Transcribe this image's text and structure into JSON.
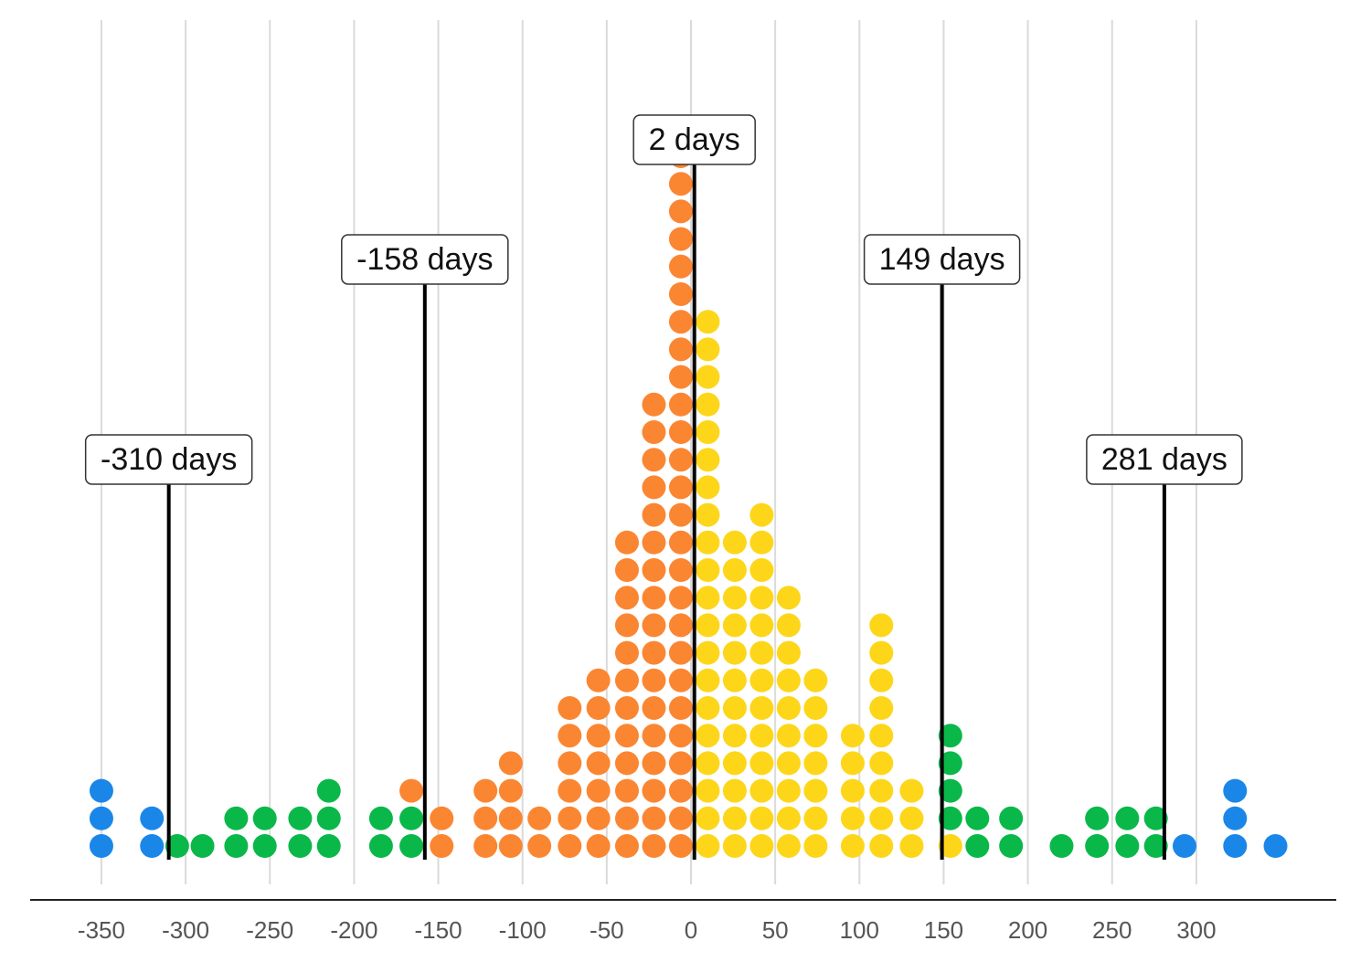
{
  "chart_data": {
    "type": "scatter",
    "title": "",
    "xlabel": "",
    "ylabel": "",
    "xlim": [
      -392,
      382
    ],
    "grid": true,
    "x_ticks": [
      -350,
      -300,
      -250,
      -200,
      -150,
      -100,
      -50,
      0,
      50,
      100,
      150,
      200,
      250,
      300
    ],
    "x_tick_labels": [
      "-350",
      "-300",
      "-250",
      "-200",
      "-150",
      "-100",
      "-50",
      "0",
      "50",
      "100",
      "150",
      "200",
      "250",
      "300"
    ],
    "colors": {
      "blue": "#1a87e8",
      "green": "#0ab84a",
      "orange": "#fb8632",
      "yellow": "#fdd619"
    },
    "dot_columns": [
      {
        "x": -350,
        "count": 3,
        "color": "blue"
      },
      {
        "x": -320,
        "count": 2,
        "color": "blue"
      },
      {
        "x": -305,
        "count": 1,
        "color": "green"
      },
      {
        "x": -290,
        "count": 1,
        "color": "green"
      },
      {
        "x": -270,
        "count": 2,
        "color": "green"
      },
      {
        "x": -253,
        "count": 2,
        "color": "green"
      },
      {
        "x": -232,
        "count": 2,
        "color": "green"
      },
      {
        "x": -215,
        "count": 3,
        "color": "green"
      },
      {
        "x": -184,
        "count": 2,
        "color": "green"
      },
      {
        "x": -166,
        "count": 2,
        "color": "green",
        "stack": [
          {
            "count": 1,
            "color": "orange"
          }
        ]
      },
      {
        "x": -148,
        "count": 2,
        "color": "orange"
      },
      {
        "x": -122,
        "count": 3,
        "color": "orange"
      },
      {
        "x": -107,
        "count": 4,
        "color": "orange"
      },
      {
        "x": -90,
        "count": 2,
        "color": "orange"
      },
      {
        "x": -72,
        "count": 6,
        "color": "orange"
      },
      {
        "x": -55,
        "count": 7,
        "color": "orange"
      },
      {
        "x": -38,
        "count": 12,
        "color": "orange"
      },
      {
        "x": -22,
        "count": 17,
        "color": "orange"
      },
      {
        "x": -6,
        "count": 26,
        "color": "orange"
      },
      {
        "x": 10,
        "count": 20,
        "color": "yellow"
      },
      {
        "x": 26,
        "count": 12,
        "color": "yellow"
      },
      {
        "x": 42,
        "count": 13,
        "color": "yellow"
      },
      {
        "x": 58,
        "count": 10,
        "color": "yellow"
      },
      {
        "x": 74,
        "count": 7,
        "color": "yellow"
      },
      {
        "x": 96,
        "count": 5,
        "color": "yellow"
      },
      {
        "x": 113,
        "count": 9,
        "color": "yellow"
      },
      {
        "x": 131,
        "count": 3,
        "color": "yellow"
      },
      {
        "x": 154,
        "count": 1,
        "color": "yellow",
        "stack": [
          {
            "count": 4,
            "color": "green"
          }
        ]
      },
      {
        "x": 170,
        "count": 2,
        "color": "green"
      },
      {
        "x": 190,
        "count": 2,
        "color": "green"
      },
      {
        "x": 220,
        "count": 1,
        "color": "green"
      },
      {
        "x": 241,
        "count": 2,
        "color": "green"
      },
      {
        "x": 259,
        "count": 2,
        "color": "green"
      },
      {
        "x": 276,
        "count": 2,
        "color": "green"
      },
      {
        "x": 293,
        "count": 1,
        "color": "blue"
      },
      {
        "x": 323,
        "count": 3,
        "color": "blue"
      },
      {
        "x": 347,
        "count": 1,
        "color": "blue"
      }
    ],
    "markers": [
      {
        "value": -310,
        "label": "-310 days"
      },
      {
        "value": -158,
        "label": "-158 days"
      },
      {
        "value": 2,
        "label": "2 days"
      },
      {
        "value": 149,
        "label": "149 days"
      },
      {
        "value": 281,
        "label": "281 days"
      }
    ]
  }
}
